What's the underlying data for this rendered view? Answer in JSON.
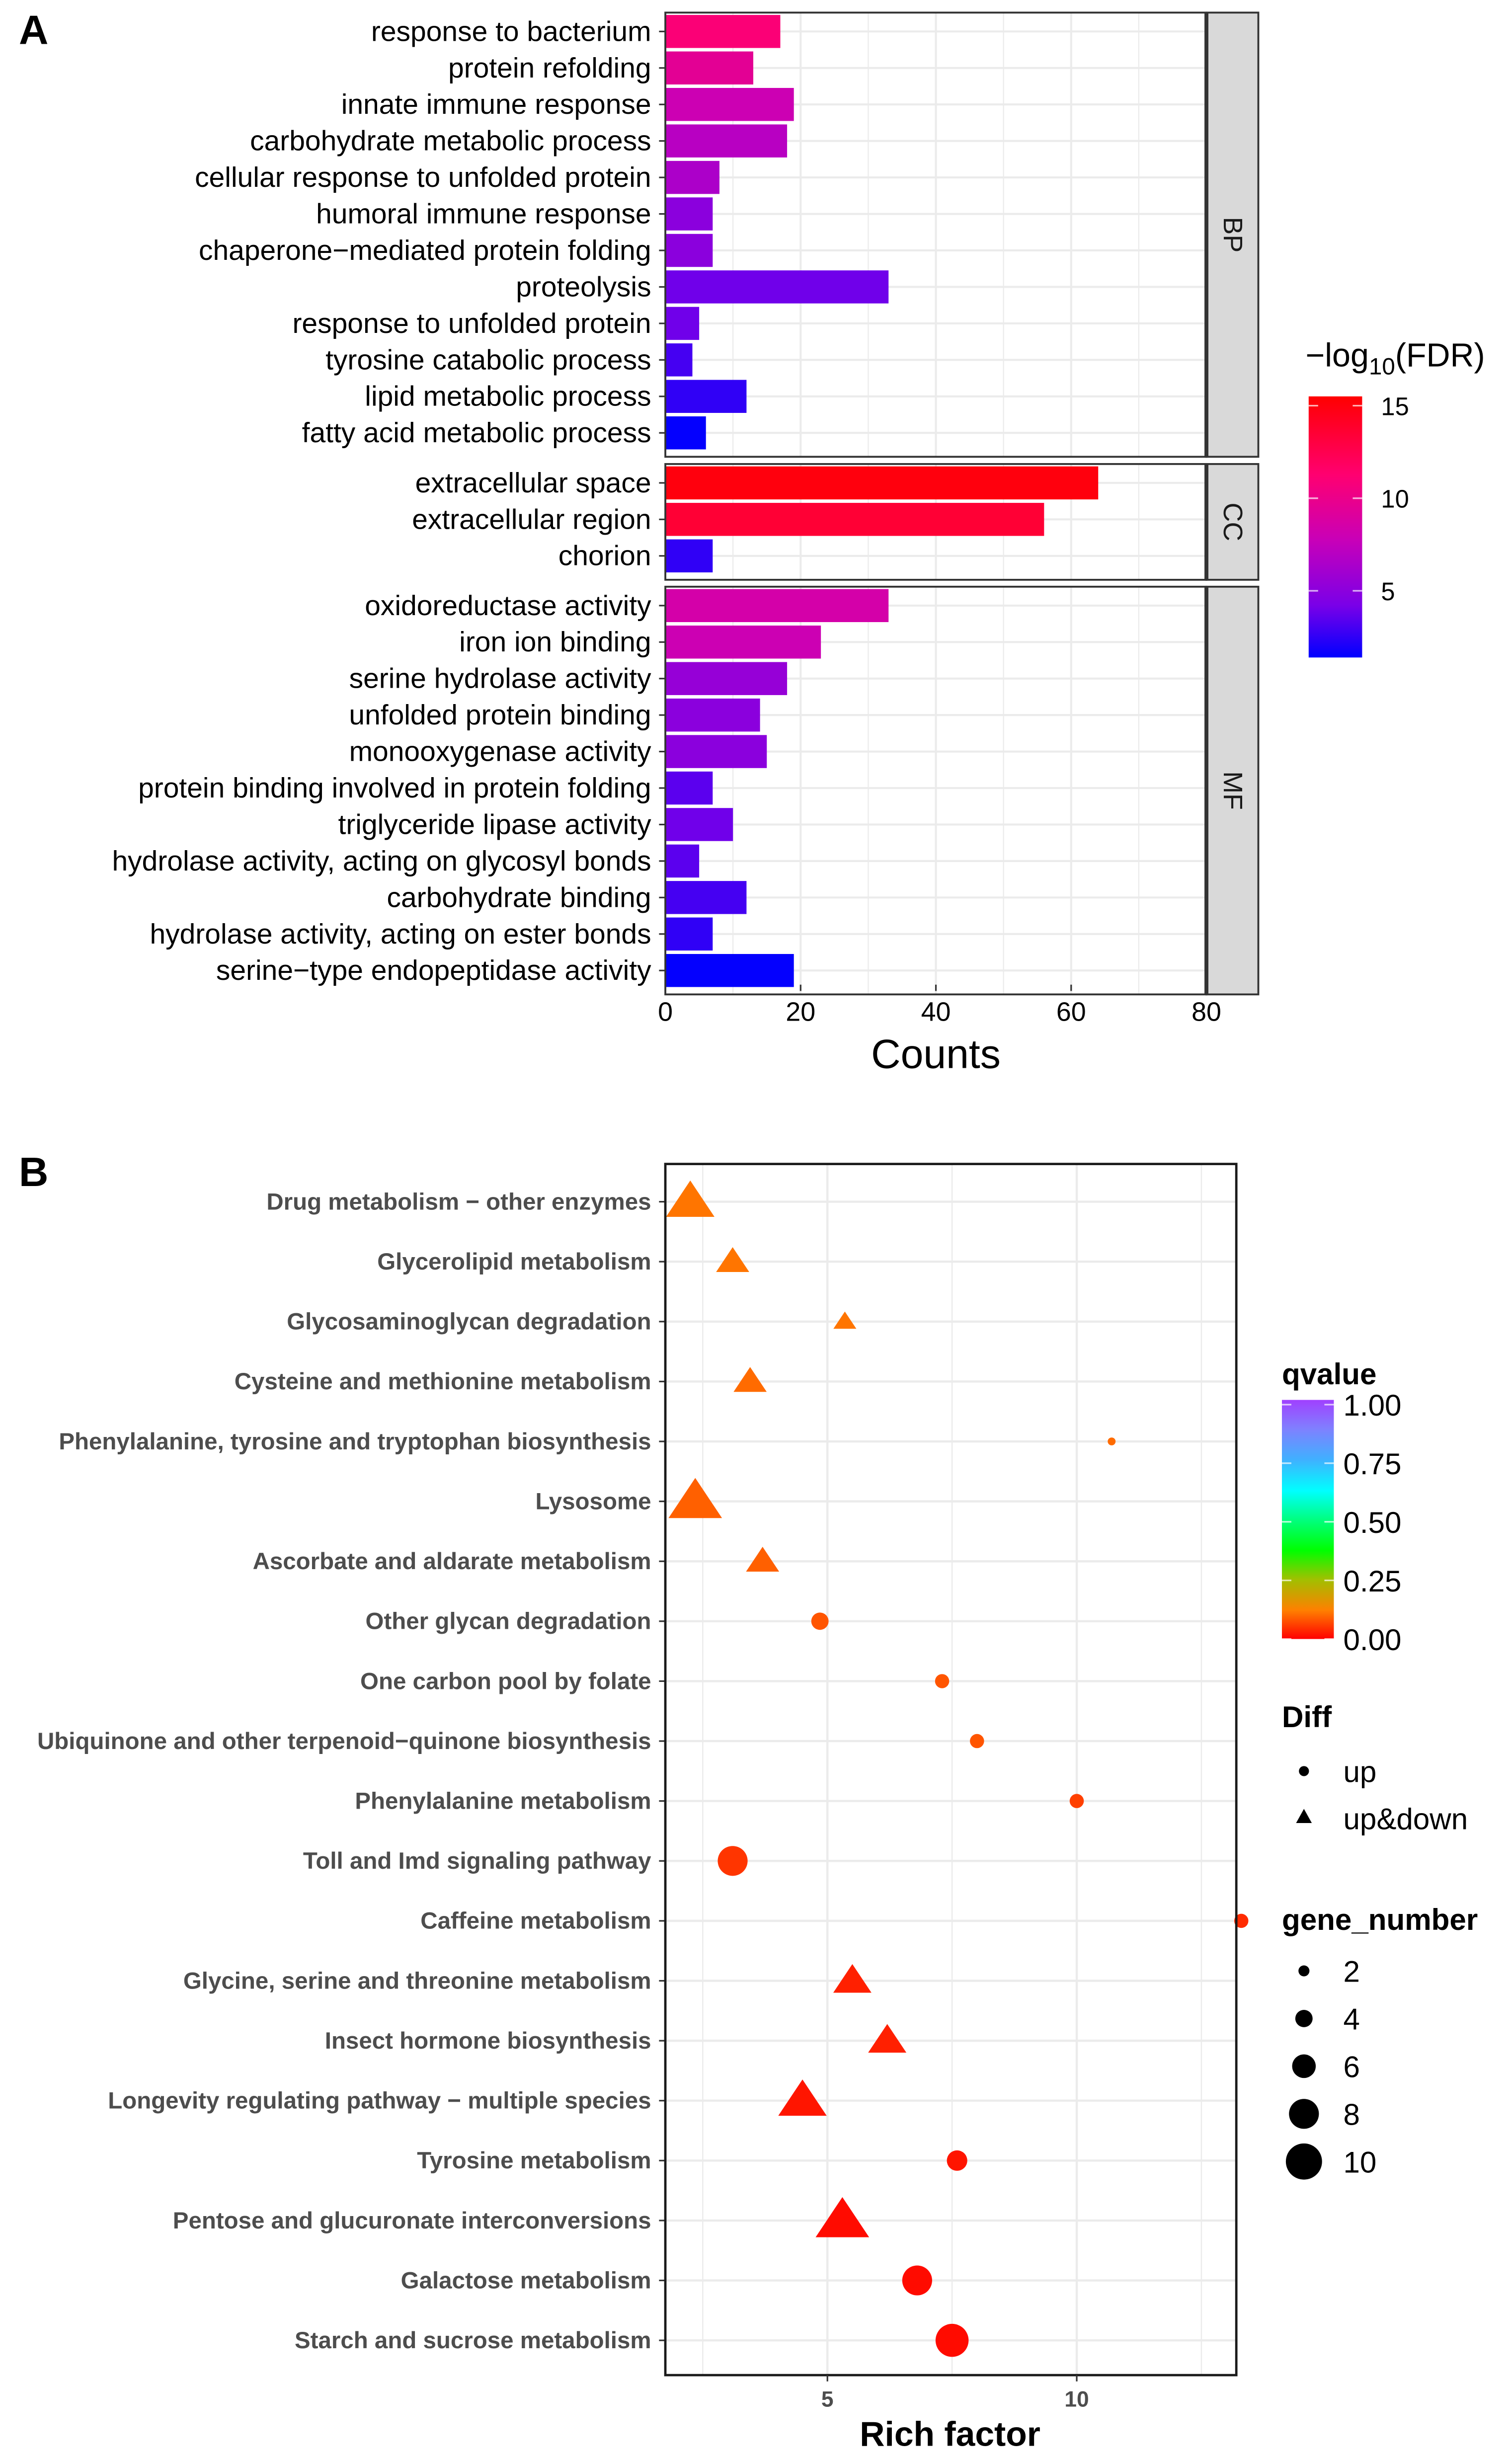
{
  "chart_data": [
    {
      "panel_label": "A",
      "type": "bar",
      "orientation": "horizontal",
      "xlabel": "Counts",
      "xlim": [
        0,
        80
      ],
      "xticks": [
        "0",
        "20",
        "40",
        "60",
        "80"
      ],
      "grid": true,
      "color_legend": {
        "title_prefix": "−log",
        "title_sub": "10",
        "title_suffix": "(FDR)",
        "ticks": [
          "15",
          "10",
          "5"
        ],
        "range": [
          1.4,
          15.5
        ],
        "low_color": "#0000ff",
        "high_color": "#ff0000"
      },
      "facets": [
        {
          "name": "BP",
          "categories": [
            {
              "label": "response to bacterium",
              "count": 17,
              "neg_log10_fdr": 11
            },
            {
              "label": "protein refolding",
              "count": 13,
              "neg_log10_fdr": 9.5
            },
            {
              "label": "innate immune response",
              "count": 19,
              "neg_log10_fdr": 8
            },
            {
              "label": "carbohydrate metabolic process",
              "count": 18,
              "neg_log10_fdr": 7
            },
            {
              "label": "cellular response to unfolded protein",
              "count": 8,
              "neg_log10_fdr": 6.5
            },
            {
              "label": "humoral immune response",
              "count": 7,
              "neg_log10_fdr": 5
            },
            {
              "label": "chaperone−mediated protein folding",
              "count": 7,
              "neg_log10_fdr": 5
            },
            {
              "label": "proteolysis",
              "count": 33,
              "neg_log10_fdr": 4
            },
            {
              "label": "response to unfolded protein",
              "count": 5,
              "neg_log10_fdr": 4
            },
            {
              "label": "tyrosine catabolic process",
              "count": 4,
              "neg_log10_fdr": 3
            },
            {
              "label": "lipid metabolic process",
              "count": 12,
              "neg_log10_fdr": 2.5
            },
            {
              "label": "fatty acid metabolic process",
              "count": 6,
              "neg_log10_fdr": 1.5
            }
          ]
        },
        {
          "name": "CC",
          "categories": [
            {
              "label": "extracellular space",
              "count": 64,
              "neg_log10_fdr": 15
            },
            {
              "label": "extracellular region",
              "count": 56,
              "neg_log10_fdr": 13.5
            },
            {
              "label": "chorion",
              "count": 7,
              "neg_log10_fdr": 2.5
            }
          ]
        },
        {
          "name": "MF",
          "categories": [
            {
              "label": "oxidoreductase activity",
              "count": 33,
              "neg_log10_fdr": 8.5
            },
            {
              "label": "iron ion binding",
              "count": 23,
              "neg_log10_fdr": 8
            },
            {
              "label": "serine hydrolase activity",
              "count": 18,
              "neg_log10_fdr": 5.5
            },
            {
              "label": "unfolded protein binding",
              "count": 14,
              "neg_log10_fdr": 5
            },
            {
              "label": "monooxygenase activity",
              "count": 15,
              "neg_log10_fdr": 5
            },
            {
              "label": "protein binding involved in protein folding",
              "count": 7,
              "neg_log10_fdr": 3.5
            },
            {
              "label": "triglyceride lipase activity",
              "count": 10,
              "neg_log10_fdr": 4
            },
            {
              "label": "hydrolase activity, acting on glycosyl bonds",
              "count": 5,
              "neg_log10_fdr": 3.5
            },
            {
              "label": "carbohydrate binding",
              "count": 12,
              "neg_log10_fdr": 3
            },
            {
              "label": "hydrolase activity, acting on ester bonds",
              "count": 7,
              "neg_log10_fdr": 2.5
            },
            {
              "label": "serine−type endopeptidase activity",
              "count": 19,
              "neg_log10_fdr": 1.5
            }
          ]
        }
      ]
    },
    {
      "panel_label": "B",
      "type": "scatter",
      "xlabel": "Rich factor",
      "xlim": [
        1.75,
        13.2
      ],
      "xticks": [
        "5",
        "10"
      ],
      "grid": true,
      "legend_placement": "right",
      "qvalue_legend": {
        "title": "qvalue",
        "ticks": [
          "1.00",
          "0.75",
          "0.50",
          "0.25",
          "0.00"
        ]
      },
      "diff_legend": {
        "title": "Diff",
        "entries": [
          "up",
          "up&down"
        ]
      },
      "size_legend": {
        "title": "gene_number",
        "entries": [
          "2",
          "4",
          "6",
          "8",
          "10"
        ]
      },
      "points": [
        {
          "label": "Drug metabolism − other enzymes",
          "rich_factor": 2.25,
          "gene_number": 8,
          "diff": "up&down",
          "qvalue": 0.11
        },
        {
          "label": "Glycerolipid metabolism",
          "rich_factor": 3.1,
          "gene_number": 5,
          "diff": "up&down",
          "qvalue": 0.11
        },
        {
          "label": "Glycosaminoglycan degradation",
          "rich_factor": 5.35,
          "gene_number": 3,
          "diff": "up&down",
          "qvalue": 0.11
        },
        {
          "label": "Cysteine and methionine metabolism",
          "rich_factor": 3.45,
          "gene_number": 5,
          "diff": "up&down",
          "qvalue": 0.1
        },
        {
          "label": "Phenylalanine, tyrosine and tryptophan biosynthesis",
          "rich_factor": 10.7,
          "gene_number": 1,
          "diff": "up",
          "qvalue": 0.1
        },
        {
          "label": "Lysosome",
          "rich_factor": 2.35,
          "gene_number": 9,
          "diff": "up&down",
          "qvalue": 0.09
        },
        {
          "label": "Ascorbate and aldarate metabolism",
          "rich_factor": 3.7,
          "gene_number": 5,
          "diff": "up&down",
          "qvalue": 0.09
        },
        {
          "label": "Other glycan degradation",
          "rich_factor": 4.85,
          "gene_number": 4,
          "diff": "up",
          "qvalue": 0.08
        },
        {
          "label": "One carbon pool by folate",
          "rich_factor": 7.3,
          "gene_number": 3,
          "diff": "up",
          "qvalue": 0.08
        },
        {
          "label": "Ubiquinone and other terpenoid−quinone biosynthesis",
          "rich_factor": 8.0,
          "gene_number": 3,
          "diff": "up",
          "qvalue": 0.08
        },
        {
          "label": "Phenylalanine metabolism",
          "rich_factor": 10.0,
          "gene_number": 3,
          "diff": "up",
          "qvalue": 0.06
        },
        {
          "label": "Toll and Imd signaling pathway",
          "rich_factor": 3.1,
          "gene_number": 8,
          "diff": "up",
          "qvalue": 0.05
        },
        {
          "label": "Caffeine metabolism",
          "rich_factor": 13.3,
          "gene_number": 3,
          "diff": "up",
          "qvalue": 0.04
        },
        {
          "label": "Glycine, serine and threonine metabolism",
          "rich_factor": 5.5,
          "gene_number": 6,
          "diff": "up&down",
          "qvalue": 0.03
        },
        {
          "label": "Insect hormone biosynthesis",
          "rich_factor": 6.2,
          "gene_number": 6,
          "diff": "up&down",
          "qvalue": 0.03
        },
        {
          "label": "Longevity regulating pathway − multiple species",
          "rich_factor": 4.5,
          "gene_number": 8,
          "diff": "up&down",
          "qvalue": 0.02
        },
        {
          "label": "Tyrosine metabolism",
          "rich_factor": 7.6,
          "gene_number": 5,
          "diff": "up",
          "qvalue": 0.02
        },
        {
          "label": "Pentose and glucuronate interconversions",
          "rich_factor": 5.3,
          "gene_number": 9,
          "diff": "up&down",
          "qvalue": 0.01
        },
        {
          "label": "Galactose metabolism",
          "rich_factor": 6.8,
          "gene_number": 8,
          "diff": "up",
          "qvalue": 0.01
        },
        {
          "label": "Starch and sucrose metabolism",
          "rich_factor": 7.5,
          "gene_number": 9,
          "diff": "up",
          "qvalue": 0.01
        }
      ]
    }
  ]
}
